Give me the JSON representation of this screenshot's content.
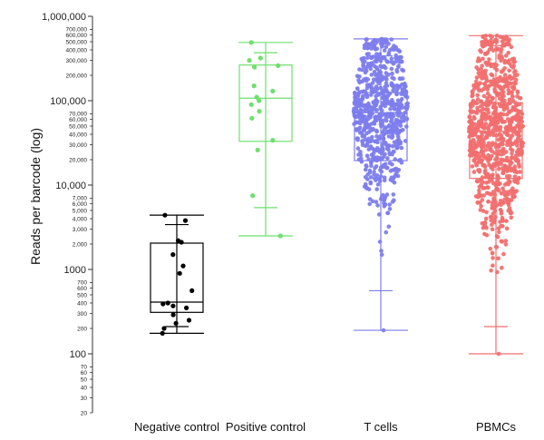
{
  "chart_data": {
    "type": "box-strip",
    "title": "",
    "xlabel": "",
    "ylabel": "Reads per barcode (log)",
    "yscale": "log",
    "ylim": [
      20,
      1000000
    ],
    "grid": false,
    "legend": "none",
    "categories": [
      "Negative control",
      "Positive control",
      "T cells",
      "PBMCs"
    ],
    "y_major_ticks": [
      {
        "value": 100,
        "label": "100"
      },
      {
        "value": 1000,
        "label": "1000"
      },
      {
        "value": 10000,
        "label": "10,000"
      },
      {
        "value": 100000,
        "label": "100,000"
      },
      {
        "value": 1000000,
        "label": "1,000,000"
      }
    ],
    "y_minor_ticks": [
      {
        "value": 20,
        "label": "20"
      },
      {
        "value": 30,
        "label": "30"
      },
      {
        "value": 40,
        "label": "40"
      },
      {
        "value": 50,
        "label": "50"
      },
      {
        "value": 60,
        "label": "60"
      },
      {
        "value": 70,
        "label": "70"
      },
      {
        "value": 200,
        "label": "200"
      },
      {
        "value": 300,
        "label": "300"
      },
      {
        "value": 400,
        "label": "400"
      },
      {
        "value": 500,
        "label": "500"
      },
      {
        "value": 600,
        "label": "600"
      },
      {
        "value": 700,
        "label": "700"
      },
      {
        "value": 2000,
        "label": "2,000"
      },
      {
        "value": 3000,
        "label": "3,000"
      },
      {
        "value": 4000,
        "label": "4,000"
      },
      {
        "value": 5000,
        "label": "5,000"
      },
      {
        "value": 6000,
        "label": "6,000"
      },
      {
        "value": 7000,
        "label": "7,000"
      },
      {
        "value": 20000,
        "label": "20,000"
      },
      {
        "value": 30000,
        "label": "30,000"
      },
      {
        "value": 40000,
        "label": "40,000"
      },
      {
        "value": 50000,
        "label": "50,000"
      },
      {
        "value": 60000,
        "label": "60,000"
      },
      {
        "value": 70000,
        "label": "70,000"
      },
      {
        "value": 200000,
        "label": "200,000"
      },
      {
        "value": 300000,
        "label": "300,000"
      },
      {
        "value": 400000,
        "label": "400,000"
      },
      {
        "value": 500000,
        "label": "500,000"
      },
      {
        "value": 600000,
        "label": "600,000"
      },
      {
        "value": 700000,
        "label": "700,000"
      }
    ],
    "series": [
      {
        "name": "Negative control",
        "color": "#000000",
        "box": {
          "min": 175,
          "q1": 310,
          "median": 410,
          "q3": 2050,
          "max": 4400
        },
        "inner_whiskers": [
          210,
          3400
        ],
        "points": [
          4400,
          3800,
          2200,
          2100,
          1500,
          1100,
          900,
          560,
          400,
          390,
          370,
          350,
          290,
          250,
          230,
          200,
          175
        ],
        "n_points": 17
      },
      {
        "name": "Positive control",
        "color": "#6ee06e",
        "box": {
          "min": 2500,
          "q1": 33000,
          "median": 107000,
          "q3": 265000,
          "max": 490000
        },
        "inner_whiskers": [
          5400,
          370000
        ],
        "points": [
          490000,
          320000,
          300000,
          260000,
          250000,
          150000,
          130000,
          110000,
          100000,
          90000,
          75000,
          62000,
          34000,
          26000,
          7500,
          2500
        ],
        "n_points": 16
      },
      {
        "name": "T cells",
        "color": "#7d7ded",
        "box": {
          "min": 190,
          "q1": 19500,
          "median": 72000,
          "q3": 125000,
          "max": 540000
        },
        "inner_whiskers": [
          560,
          340000
        ],
        "points_distribution": {
          "n": 700,
          "log_median": 4.86,
          "log_sd": 0.52,
          "min": 190,
          "max": 540000,
          "seed": 7
        },
        "n_points": 700
      },
      {
        "name": "PBMCs",
        "color": "#f26f6f",
        "box": {
          "min": 100,
          "q1": 12000,
          "median": 43000,
          "q3": 95000,
          "max": 590000
        },
        "inner_whiskers": [
          210,
          450000
        ],
        "points_distribution": {
          "n": 900,
          "log_median": 4.63,
          "log_sd": 0.58,
          "min": 100,
          "max": 590000,
          "seed": 23
        },
        "n_points": 900
      }
    ]
  }
}
